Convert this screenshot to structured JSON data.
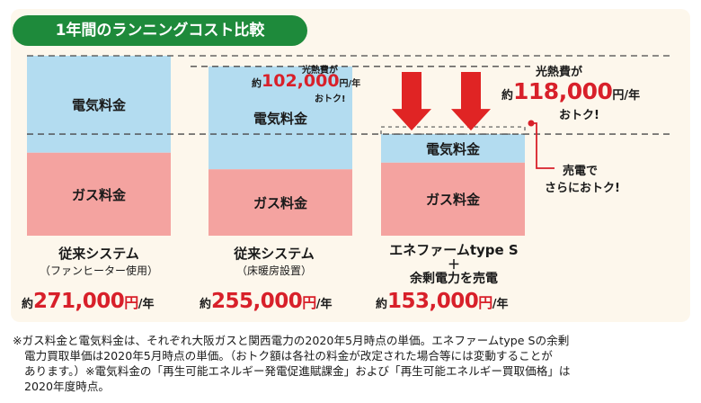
{
  "title": "1年間のランニングコスト比較",
  "chart_data": {
    "type": "bar",
    "stacked": true,
    "ylim": [
      0,
      271000
    ],
    "segments": [
      "ガス料金",
      "電気料金"
    ],
    "categories": [
      {
        "name": "従来システム",
        "sub": "（ファンヒーター使用）",
        "total": 271000,
        "gas": 125000,
        "electric": 146000
      },
      {
        "name": "従来システム",
        "sub": "（床暖房設置）",
        "total": 255000,
        "gas": 100000,
        "electric": 155000
      },
      {
        "name": "エネファームtype S",
        "plus": "＋",
        "sub": "余剰電力を売電",
        "total": 153000,
        "gas": 110000,
        "electric": 43000
      }
    ],
    "prices": [
      {
        "prefix": "約",
        "value": "271,000",
        "unit": "円",
        "per": "/年"
      },
      {
        "prefix": "約",
        "value": "255,000",
        "unit": "円",
        "per": "/年"
      },
      {
        "prefix": "約",
        "value": "153,000",
        "unit": "円",
        "per": "/年"
      }
    ],
    "savings": [
      {
        "line1": "光熱費が",
        "prefix": "約",
        "value": "102,000",
        "unit": "円/年",
        "note": "おトク!"
      },
      {
        "line1": "光熱費が",
        "prefix": "約",
        "value": "118,000",
        "unit": "円/年",
        "note": "おトク!"
      }
    ],
    "sell_note": {
      "line1": "売電で",
      "line2": "さらにおトク!"
    },
    "colors": {
      "gas": "#f4a3a0",
      "electric": "#b3dcf0",
      "arrow": "#e02424",
      "accent": "#d8202a",
      "title_bg": "#1e8a3b",
      "panel_bg": "#fdf7ec"
    }
  },
  "footnote": {
    "lines": [
      "※ガス料金と電気料金は、それぞれ大阪ガスと関西電力の2020年5月時点の単価。エネファームtype Sの余剰",
      "電力買取単価は2020年5月時点の単価。（おトク額は各社の料金が改定された場合等には変動することが",
      "あります。）※電気料金の「再生可能エネルギー発電促進賦課金」および「再生可能エネルギー買取価格」は",
      "2020年度時点。"
    ]
  }
}
